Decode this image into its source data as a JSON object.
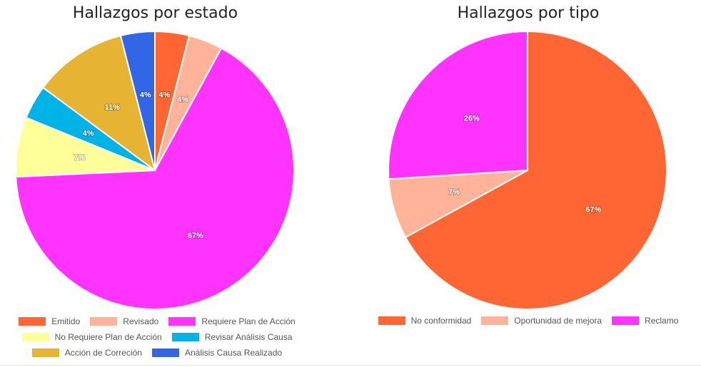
{
  "chart_data": [
    {
      "type": "pie",
      "title": "Hallazgos por estado",
      "categories": [
        "Emitido",
        "Revisado",
        "Requiere Plan de Acción",
        "No Requiere Plan de Acción",
        "Revisar Análisis Causa",
        "Acción de Correción",
        "Análisis Causa Realizado"
      ],
      "values": [
        4,
        4,
        67,
        7,
        4,
        11,
        4
      ],
      "labels": [
        "4%",
        "4%",
        "67%",
        "7%",
        "4%",
        "11%",
        "4%"
      ],
      "colors": [
        "#ff6633",
        "#ffb399",
        "#ff33ff",
        "#ffff99",
        "#00b3e6",
        "#e6b333",
        "#3366e6"
      ],
      "legend": "bottom"
    },
    {
      "type": "pie",
      "title": "Hallazgos por tipo",
      "categories": [
        "No conformidad",
        "Oportunidad de mejora",
        "Reclamo"
      ],
      "values": [
        67,
        7,
        26
      ],
      "labels": [
        "67%",
        "7%",
        "26%"
      ],
      "colors": [
        "#ff6633",
        "#ffb399",
        "#ff33ff"
      ],
      "legend": "bottom"
    }
  ]
}
